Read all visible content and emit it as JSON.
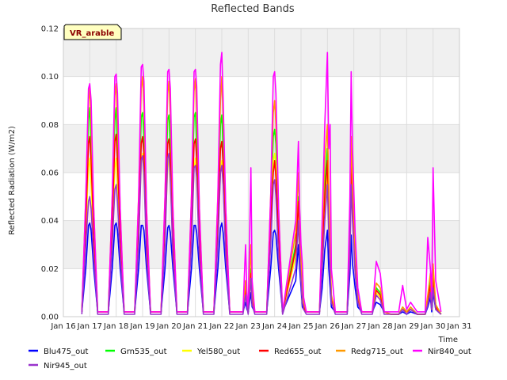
{
  "chart_data": {
    "type": "line",
    "title": "Reflected Bands",
    "xlabel": "Time",
    "ylabel": "Reflected Radiation (W/m2)",
    "badge": "VR_arable",
    "xlim": [
      16,
      31
    ],
    "ylim": [
      0.0,
      0.12
    ],
    "x_ticks": [
      "Jan 16",
      "Jan 17",
      "Jan 18",
      "Jan 19",
      "Jan 20",
      "Jan 21",
      "Jan 22",
      "Jan 23",
      "Jan 24",
      "Jan 25",
      "Jan 26",
      "Jan 27",
      "Jan 28",
      "Jan 29",
      "Jan 30",
      "Jan 31"
    ],
    "y_ticks": [
      "0.00",
      "0.02",
      "0.04",
      "0.06",
      "0.08",
      "0.10",
      "0.12"
    ],
    "grid": true,
    "legend_position": "bottom",
    "series_x": [
      16.7,
      16.85,
      16.95,
      17.0,
      17.05,
      17.15,
      17.3,
      17.7,
      17.85,
      17.95,
      18.0,
      18.05,
      18.15,
      18.3,
      18.7,
      18.85,
      18.95,
      19.0,
      19.05,
      19.15,
      19.3,
      19.7,
      19.85,
      19.95,
      20.0,
      20.05,
      20.15,
      20.3,
      20.7,
      20.85,
      20.95,
      21.0,
      21.05,
      21.15,
      21.3,
      21.7,
      21.85,
      21.95,
      22.0,
      22.05,
      22.15,
      22.3,
      22.8,
      22.9,
      22.95,
      23.0,
      23.1,
      23.15,
      23.25,
      23.35,
      23.7,
      23.85,
      23.95,
      24.0,
      24.05,
      24.15,
      24.3,
      24.8,
      24.9,
      24.95,
      25.0,
      25.05,
      25.1,
      25.2,
      25.3,
      25.7,
      25.8,
      25.9,
      26.0,
      26.05,
      26.1,
      26.15,
      26.3,
      26.75,
      26.85,
      26.9,
      26.95,
      27.05,
      27.15,
      27.3,
      27.7,
      27.85,
      28.0,
      28.15,
      28.4,
      28.7,
      28.85,
      29.0,
      29.15,
      29.4,
      29.7,
      29.8,
      29.9,
      29.95,
      30.0,
      30.1,
      30.3
    ],
    "series": [
      {
        "name": "Blu475_out",
        "color": "#0000ff",
        "values": [
          0.002,
          0.02,
          0.038,
          0.039,
          0.036,
          0.02,
          0.002,
          0.002,
          0.02,
          0.038,
          0.039,
          0.036,
          0.02,
          0.002,
          0.002,
          0.02,
          0.038,
          0.038,
          0.036,
          0.02,
          0.002,
          0.002,
          0.02,
          0.037,
          0.038,
          0.035,
          0.02,
          0.002,
          0.002,
          0.02,
          0.038,
          0.038,
          0.035,
          0.02,
          0.002,
          0.002,
          0.02,
          0.037,
          0.039,
          0.035,
          0.02,
          0.002,
          0.002,
          0.006,
          0.003,
          0.002,
          0.01,
          0.004,
          0.002,
          0.002,
          0.002,
          0.02,
          0.035,
          0.036,
          0.034,
          0.02,
          0.002,
          0.015,
          0.03,
          0.02,
          0.012,
          0.004,
          0.003,
          0.002,
          0.002,
          0.002,
          0.012,
          0.028,
          0.036,
          0.02,
          0.012,
          0.004,
          0.002,
          0.002,
          0.018,
          0.034,
          0.022,
          0.012,
          0.004,
          0.002,
          0.002,
          0.006,
          0.005,
          0.002,
          0.001,
          0.001,
          0.002,
          0.001,
          0.002,
          0.001,
          0.001,
          0.004,
          0.008,
          0.002,
          0.01,
          0.003,
          0.001
        ]
      },
      {
        "name": "Grn535_out",
        "color": "#00ff00",
        "values": [
          0.002,
          0.045,
          0.082,
          0.087,
          0.07,
          0.04,
          0.002,
          0.002,
          0.045,
          0.082,
          0.087,
          0.07,
          0.04,
          0.002,
          0.002,
          0.045,
          0.083,
          0.085,
          0.075,
          0.04,
          0.002,
          0.002,
          0.045,
          0.082,
          0.084,
          0.072,
          0.04,
          0.002,
          0.002,
          0.045,
          0.083,
          0.085,
          0.072,
          0.04,
          0.002,
          0.002,
          0.045,
          0.08,
          0.084,
          0.07,
          0.04,
          0.002,
          0.002,
          0.012,
          0.006,
          0.002,
          0.02,
          0.008,
          0.002,
          0.002,
          0.002,
          0.045,
          0.075,
          0.078,
          0.072,
          0.04,
          0.002,
          0.03,
          0.05,
          0.035,
          0.02,
          0.008,
          0.005,
          0.002,
          0.002,
          0.002,
          0.03,
          0.055,
          0.07,
          0.045,
          0.025,
          0.008,
          0.002,
          0.002,
          0.035,
          0.07,
          0.05,
          0.025,
          0.008,
          0.002,
          0.002,
          0.012,
          0.01,
          0.002,
          0.001,
          0.001,
          0.004,
          0.002,
          0.004,
          0.001,
          0.001,
          0.008,
          0.015,
          0.004,
          0.018,
          0.005,
          0.001
        ]
      },
      {
        "name": "Yel580_out",
        "color": "#ffff00",
        "values": [
          0.002,
          0.035,
          0.062,
          0.066,
          0.055,
          0.03,
          0.002,
          0.002,
          0.035,
          0.062,
          0.066,
          0.055,
          0.03,
          0.002,
          0.002,
          0.035,
          0.064,
          0.068,
          0.058,
          0.03,
          0.002,
          0.002,
          0.035,
          0.062,
          0.066,
          0.056,
          0.03,
          0.002,
          0.002,
          0.035,
          0.062,
          0.066,
          0.056,
          0.03,
          0.002,
          0.002,
          0.035,
          0.06,
          0.065,
          0.055,
          0.03,
          0.002,
          0.002,
          0.01,
          0.005,
          0.002,
          0.016,
          0.006,
          0.002,
          0.002,
          0.002,
          0.035,
          0.065,
          0.068,
          0.062,
          0.03,
          0.002,
          0.025,
          0.045,
          0.03,
          0.016,
          0.006,
          0.004,
          0.002,
          0.002,
          0.002,
          0.025,
          0.045,
          0.06,
          0.04,
          0.02,
          0.006,
          0.002,
          0.002,
          0.03,
          0.062,
          0.045,
          0.02,
          0.006,
          0.002,
          0.002,
          0.01,
          0.008,
          0.002,
          0.001,
          0.001,
          0.003,
          0.002,
          0.003,
          0.001,
          0.001,
          0.006,
          0.012,
          0.003,
          0.014,
          0.004,
          0.001
        ]
      },
      {
        "name": "Red655_out",
        "color": "#ff0000",
        "values": [
          0.002,
          0.04,
          0.072,
          0.075,
          0.065,
          0.035,
          0.002,
          0.002,
          0.04,
          0.073,
          0.076,
          0.065,
          0.035,
          0.002,
          0.002,
          0.04,
          0.072,
          0.075,
          0.068,
          0.035,
          0.002,
          0.002,
          0.04,
          0.072,
          0.074,
          0.066,
          0.035,
          0.002,
          0.002,
          0.04,
          0.072,
          0.074,
          0.066,
          0.035,
          0.002,
          0.002,
          0.04,
          0.07,
          0.073,
          0.064,
          0.035,
          0.002,
          0.002,
          0.011,
          0.005,
          0.002,
          0.018,
          0.007,
          0.002,
          0.002,
          0.002,
          0.04,
          0.06,
          0.065,
          0.058,
          0.035,
          0.002,
          0.028,
          0.048,
          0.032,
          0.018,
          0.007,
          0.004,
          0.002,
          0.002,
          0.002,
          0.028,
          0.05,
          0.065,
          0.042,
          0.022,
          0.007,
          0.002,
          0.002,
          0.032,
          0.065,
          0.048,
          0.022,
          0.007,
          0.002,
          0.002,
          0.011,
          0.009,
          0.002,
          0.001,
          0.001,
          0.003,
          0.002,
          0.003,
          0.001,
          0.001,
          0.007,
          0.013,
          0.003,
          0.016,
          0.004,
          0.001
        ]
      },
      {
        "name": "Redg715_out",
        "color": "#ff9900",
        "values": [
          0.002,
          0.05,
          0.09,
          0.095,
          0.08,
          0.045,
          0.002,
          0.002,
          0.05,
          0.092,
          0.097,
          0.082,
          0.045,
          0.002,
          0.002,
          0.05,
          0.095,
          0.1,
          0.088,
          0.045,
          0.002,
          0.002,
          0.05,
          0.093,
          0.098,
          0.085,
          0.045,
          0.002,
          0.002,
          0.05,
          0.094,
          0.099,
          0.085,
          0.045,
          0.002,
          0.002,
          0.05,
          0.09,
          0.1,
          0.082,
          0.045,
          0.002,
          0.002,
          0.015,
          0.007,
          0.002,
          0.03,
          0.01,
          0.002,
          0.002,
          0.002,
          0.05,
          0.085,
          0.09,
          0.08,
          0.045,
          0.002,
          0.035,
          0.06,
          0.04,
          0.025,
          0.009,
          0.006,
          0.002,
          0.002,
          0.002,
          0.035,
          0.065,
          0.08,
          0.055,
          0.03,
          0.009,
          0.002,
          0.002,
          0.04,
          0.075,
          0.055,
          0.028,
          0.009,
          0.002,
          0.002,
          0.014,
          0.012,
          0.002,
          0.001,
          0.001,
          0.004,
          0.002,
          0.004,
          0.001,
          0.001,
          0.009,
          0.018,
          0.004,
          0.022,
          0.005,
          0.001
        ]
      },
      {
        "name": "Nir840_out",
        "color": "#ff00ff",
        "values": [
          0.002,
          0.05,
          0.095,
          0.097,
          0.09,
          0.045,
          0.002,
          0.002,
          0.05,
          0.1,
          0.101,
          0.093,
          0.045,
          0.002,
          0.002,
          0.05,
          0.104,
          0.105,
          0.098,
          0.045,
          0.002,
          0.002,
          0.05,
          0.102,
          0.103,
          0.095,
          0.045,
          0.002,
          0.002,
          0.05,
          0.102,
          0.103,
          0.096,
          0.045,
          0.002,
          0.002,
          0.05,
          0.105,
          0.11,
          0.09,
          0.045,
          0.002,
          0.002,
          0.03,
          0.01,
          0.002,
          0.062,
          0.015,
          0.002,
          0.002,
          0.002,
          0.05,
          0.1,
          0.102,
          0.093,
          0.045,
          0.002,
          0.04,
          0.073,
          0.045,
          0.03,
          0.022,
          0.008,
          0.002,
          0.002,
          0.002,
          0.04,
          0.08,
          0.11,
          0.07,
          0.08,
          0.02,
          0.002,
          0.002,
          0.05,
          0.102,
          0.07,
          0.035,
          0.012,
          0.002,
          0.002,
          0.023,
          0.018,
          0.002,
          0.002,
          0.002,
          0.013,
          0.003,
          0.006,
          0.002,
          0.002,
          0.033,
          0.02,
          0.008,
          0.062,
          0.015,
          0.002
        ]
      },
      {
        "name": "Nir945_out",
        "color": "#9933cc",
        "values": [
          0.001,
          0.03,
          0.048,
          0.05,
          0.045,
          0.025,
          0.001,
          0.001,
          0.03,
          0.053,
          0.055,
          0.048,
          0.025,
          0.001,
          0.001,
          0.03,
          0.065,
          0.067,
          0.06,
          0.025,
          0.001,
          0.001,
          0.03,
          0.066,
          0.068,
          0.058,
          0.025,
          0.001,
          0.001,
          0.03,
          0.062,
          0.063,
          0.058,
          0.025,
          0.001,
          0.001,
          0.03,
          0.06,
          0.063,
          0.055,
          0.025,
          0.001,
          0.001,
          0.009,
          0.004,
          0.001,
          0.016,
          0.005,
          0.001,
          0.001,
          0.001,
          0.03,
          0.055,
          0.057,
          0.05,
          0.025,
          0.001,
          0.02,
          0.04,
          0.025,
          0.015,
          0.006,
          0.003,
          0.001,
          0.001,
          0.001,
          0.02,
          0.04,
          0.055,
          0.035,
          0.018,
          0.006,
          0.001,
          0.001,
          0.025,
          0.055,
          0.04,
          0.018,
          0.006,
          0.001,
          0.001,
          0.009,
          0.007,
          0.001,
          0.001,
          0.001,
          0.003,
          0.001,
          0.003,
          0.001,
          0.001,
          0.005,
          0.01,
          0.003,
          0.012,
          0.003,
          0.001
        ]
      }
    ]
  }
}
